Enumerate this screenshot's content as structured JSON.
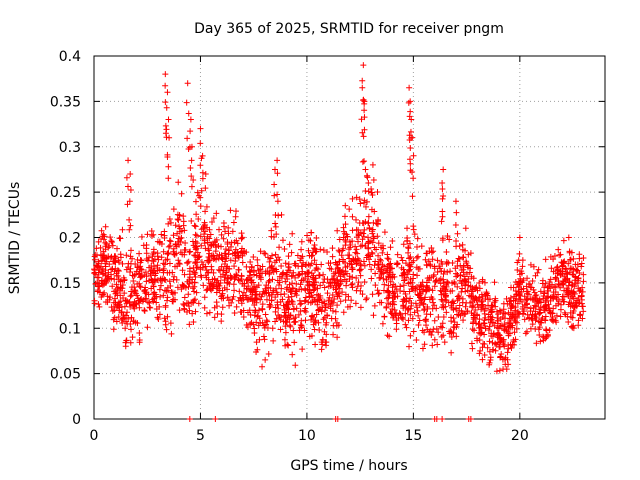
{
  "chart_data": {
    "type": "scatter",
    "title": "Day 365 of 2025, SRMTID for receiver pngm",
    "xlabel": "GPS time / hours",
    "ylabel": "SRMTID / TECUs",
    "xlim": [
      0,
      24
    ],
    "ylim": [
      0,
      0.4
    ],
    "x_ticks": [
      0,
      5,
      10,
      15,
      20
    ],
    "x_tick_labels": [
      "0",
      "5",
      "10",
      "15",
      "20"
    ],
    "y_ticks": [
      0,
      0.05,
      0.1,
      0.15,
      0.2,
      0.25,
      0.3,
      0.35,
      0.4
    ],
    "y_tick_labels": [
      "0",
      "0.05",
      "0.1",
      "0.15",
      "0.2",
      "0.25",
      "0.3",
      "0.35",
      "0.4"
    ],
    "grid": true,
    "marker": "+",
    "marker_color": "#ff0000",
    "series_profile": {
      "name": "SRMTID",
      "x": [
        0,
        0.5,
        1,
        1.5,
        2,
        2.5,
        3,
        3.5,
        4,
        4.5,
        5,
        5.5,
        6,
        6.5,
        7,
        7.5,
        8,
        8.5,
        9,
        9.5,
        10,
        10.5,
        11,
        11.5,
        12,
        12.5,
        13,
        13.5,
        14,
        14.5,
        15,
        15.5,
        16,
        16.5,
        17,
        17.5,
        18,
        18.5,
        19,
        19.5,
        20,
        20.5,
        21,
        21.5,
        22,
        22.5,
        23
      ],
      "typical": [
        0.16,
        0.17,
        0.15,
        0.13,
        0.14,
        0.16,
        0.15,
        0.16,
        0.18,
        0.15,
        0.19,
        0.17,
        0.16,
        0.17,
        0.16,
        0.14,
        0.13,
        0.16,
        0.14,
        0.13,
        0.15,
        0.14,
        0.13,
        0.15,
        0.18,
        0.19,
        0.2,
        0.16,
        0.15,
        0.14,
        0.16,
        0.14,
        0.13,
        0.14,
        0.13,
        0.15,
        0.12,
        0.11,
        0.09,
        0.1,
        0.14,
        0.13,
        0.12,
        0.14,
        0.15,
        0.14,
        0.14
      ],
      "spread": [
        0.03,
        0.04,
        0.05,
        0.05,
        0.05,
        0.05,
        0.05,
        0.06,
        0.06,
        0.05,
        0.06,
        0.05,
        0.04,
        0.05,
        0.05,
        0.05,
        0.05,
        0.06,
        0.05,
        0.05,
        0.05,
        0.05,
        0.05,
        0.05,
        0.06,
        0.07,
        0.07,
        0.05,
        0.05,
        0.05,
        0.06,
        0.05,
        0.05,
        0.05,
        0.05,
        0.05,
        0.04,
        0.04,
        0.04,
        0.04,
        0.03,
        0.04,
        0.04,
        0.04,
        0.04,
        0.04,
        0.04
      ]
    },
    "peaks": [
      {
        "x": 3.35,
        "y": 0.38
      },
      {
        "x": 3.45,
        "y": 0.36
      },
      {
        "x": 3.5,
        "y": 0.33
      },
      {
        "x": 4.4,
        "y": 0.37
      },
      {
        "x": 4.55,
        "y": 0.33
      },
      {
        "x": 4.6,
        "y": 0.3
      },
      {
        "x": 5.0,
        "y": 0.32
      },
      {
        "x": 5.1,
        "y": 0.29
      },
      {
        "x": 5.25,
        "y": 0.27
      },
      {
        "x": 1.6,
        "y": 0.285
      },
      {
        "x": 1.7,
        "y": 0.27
      },
      {
        "x": 8.6,
        "y": 0.285
      },
      {
        "x": 8.5,
        "y": 0.275
      },
      {
        "x": 12.65,
        "y": 0.39
      },
      {
        "x": 12.6,
        "y": 0.365
      },
      {
        "x": 12.7,
        "y": 0.35
      },
      {
        "x": 13.1,
        "y": 0.28
      },
      {
        "x": 14.8,
        "y": 0.365
      },
      {
        "x": 14.85,
        "y": 0.35
      },
      {
        "x": 14.9,
        "y": 0.33
      },
      {
        "x": 14.95,
        "y": 0.31
      },
      {
        "x": 16.4,
        "y": 0.275
      },
      {
        "x": 16.35,
        "y": 0.26
      },
      {
        "x": 17.0,
        "y": 0.24
      },
      {
        "x": 20.0,
        "y": 0.2
      },
      {
        "x": 22.3,
        "y": 0.2
      }
    ],
    "zero_markers": [
      4.5,
      5.7,
      11.35,
      11.45,
      16.0,
      16.1,
      16.35,
      17.6,
      17.7
    ]
  }
}
